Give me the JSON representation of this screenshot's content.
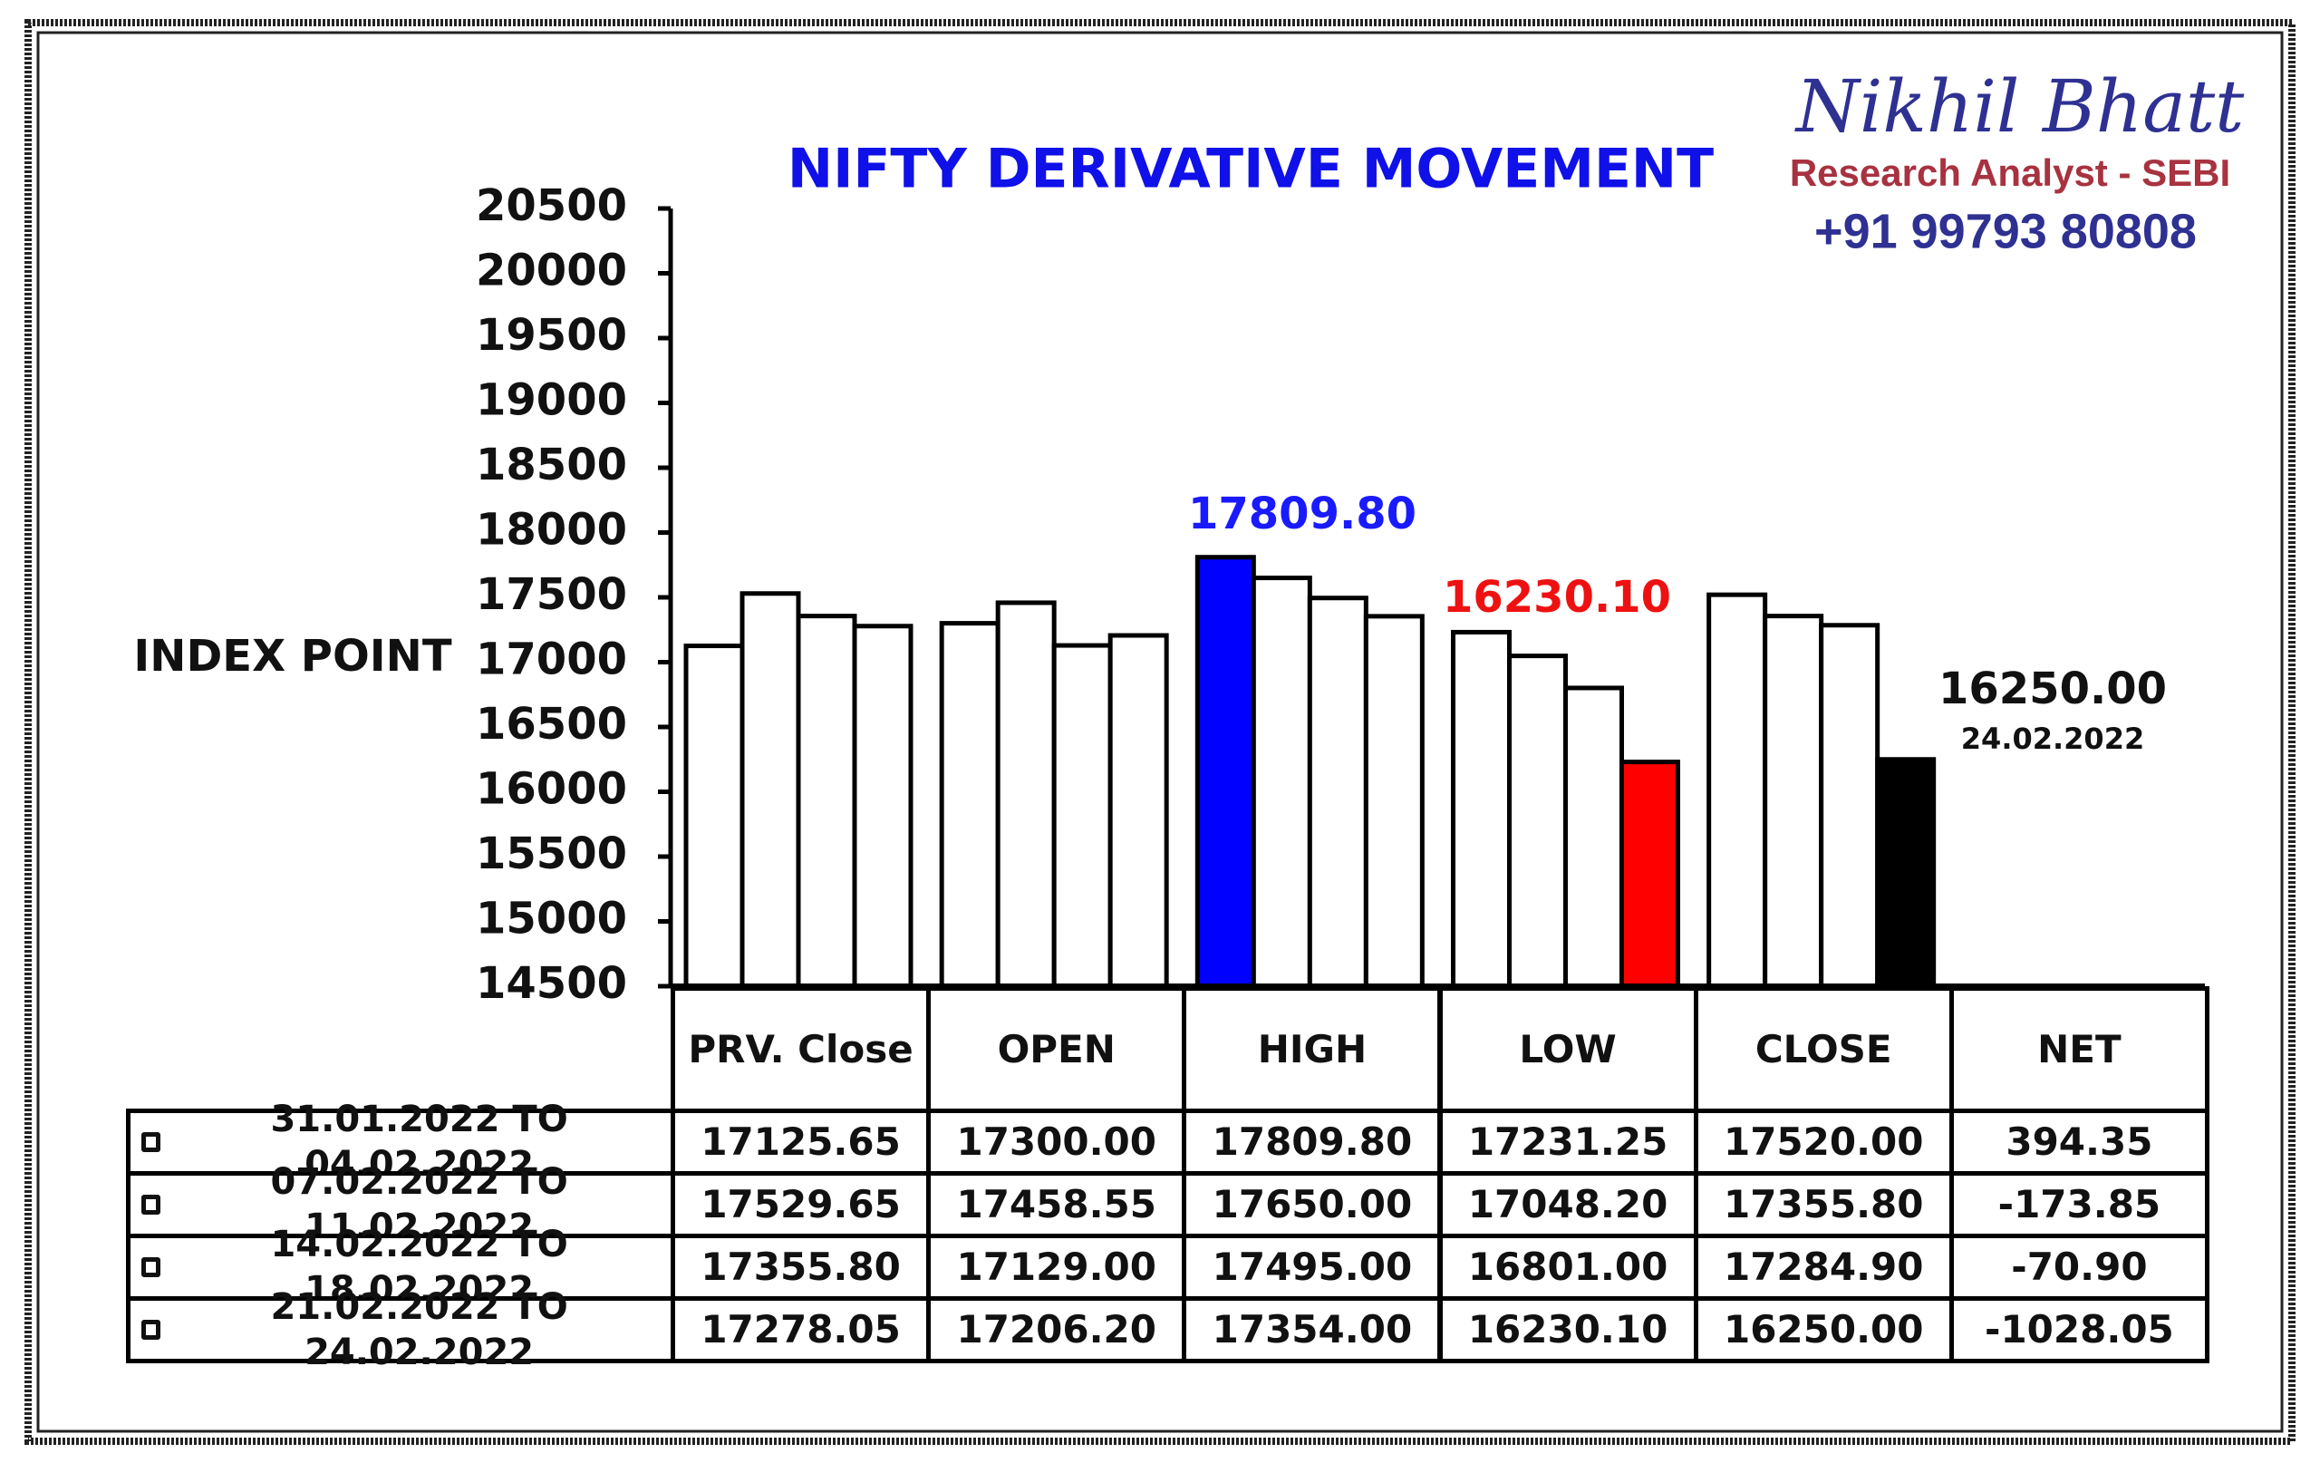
{
  "chart_data": {
    "type": "bar",
    "title": "NIFTY DERIVATIVE MOVEMENT",
    "y_label": "INDEX POINT",
    "brand": {
      "name": "Nikhil Bhatt",
      "role": "Research Analyst - SEBI",
      "phone": "+91 99793 80808"
    },
    "categories": [
      "PRV. Close",
      "OPEN",
      "HIGH",
      "LOW",
      "CLOSE"
    ],
    "net_header": "NET",
    "ylim": [
      14500,
      20500
    ],
    "yticks": [
      14500,
      15000,
      15500,
      16000,
      16500,
      17000,
      17500,
      18000,
      18500,
      19000,
      19500,
      20000,
      20500
    ],
    "series": [
      {
        "name": "31.01.2022 TO 04.02.2022",
        "colors": [
          "#ffffff",
          "#ffffff",
          "#0000ff",
          "#ffffff",
          "#ffffff"
        ],
        "values": [
          17125.65,
          17300,
          17809.8,
          17231.25,
          17520
        ],
        "value_labels": [
          "17125.65",
          "17300.00",
          "17809.80",
          "17231.25",
          "17520.00"
        ],
        "net": 394.35,
        "net_label": "394.35"
      },
      {
        "name": "07.02.2022 TO 11.02.2022",
        "colors": [
          "#ffffff",
          "#ffffff",
          "#ffffff",
          "#ffffff",
          "#ffffff"
        ],
        "values": [
          17529.65,
          17458.55,
          17650,
          17048.2,
          17355.8
        ],
        "value_labels": [
          "17529.65",
          "17458.55",
          "17650.00",
          "17048.20",
          "17355.80"
        ],
        "net": -173.85,
        "net_label": "-173.85"
      },
      {
        "name": "14.02.2022 TO 18.02.2022",
        "colors": [
          "#ffffff",
          "#ffffff",
          "#ffffff",
          "#ffffff",
          "#ffffff"
        ],
        "values": [
          17355.8,
          17129,
          17495,
          16801,
          17284.9
        ],
        "value_labels": [
          "17355.80",
          "17129.00",
          "17495.00",
          "16801.00",
          "17284.90"
        ],
        "net": -70.9,
        "net_label": "-70.90"
      },
      {
        "name": "21.02.2022 TO 24.02.2022",
        "colors": [
          "#ffffff",
          "#ffffff",
          "#ffffff",
          "#ff0000",
          "#000000"
        ],
        "values": [
          17278.05,
          17206.2,
          17354,
          16230.1,
          16250
        ],
        "value_labels": [
          "17278.05",
          "17206.20",
          "17354.00",
          "16230.10",
          "16250.00"
        ],
        "net": -1028.05,
        "net_label": "-1028.05"
      }
    ],
    "annotations": [
      {
        "text": "17809.80",
        "color": "#1a1aff"
      },
      {
        "text": "16230.10",
        "color": "#ee1111"
      },
      {
        "text": "16250.00",
        "color": "#111111"
      },
      {
        "text": "24.02.2022",
        "color": "#111111"
      }
    ]
  }
}
